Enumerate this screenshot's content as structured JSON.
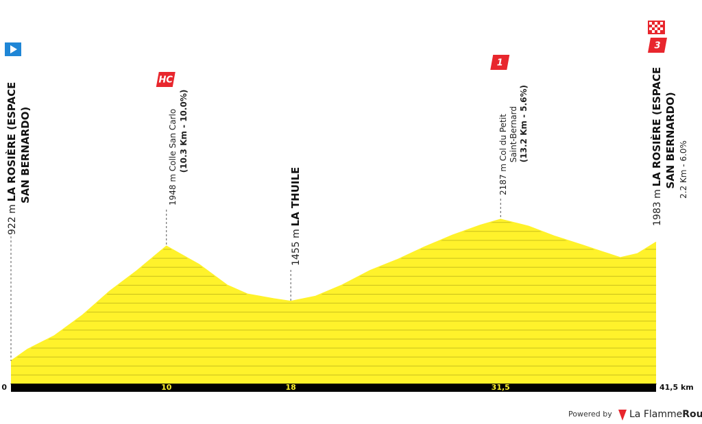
{
  "chart_data": {
    "type": "area",
    "color": "#fff22b",
    "x": [
      0,
      1.06,
      2.8,
      4.6,
      6.35,
      8.1,
      10,
      12.1,
      13.9,
      15.2,
      16.9,
      18,
      19.6,
      21.3,
      23.1,
      24.9,
      26.6,
      28.4,
      30.2,
      31.5,
      33.3,
      35.0,
      36.8,
      38.1,
      39.2,
      40.3,
      41.5
    ],
    "values": [
      922,
      1026,
      1148,
      1331,
      1545,
      1728,
      1948,
      1784,
      1600,
      1520,
      1478,
      1455,
      1500,
      1600,
      1730,
      1830,
      1940,
      2045,
      2135,
      2187,
      2125,
      2035,
      1955,
      1895,
      1845,
      1880,
      1983
    ],
    "xlim": [
      0,
      41.5
    ],
    "ylim": [
      720,
      2500
    ],
    "xticks": [
      0,
      10,
      18,
      {
        "value": 31.5,
        "label": "31,5"
      },
      {
        "value": 41.5,
        "label": "41,5 km"
      }
    ],
    "waypoints": [
      {
        "km": 0,
        "elevation": 922,
        "elevation_label": "922 m",
        "name_lines": [
          "LA ROSIÈRE (ESPACE",
          "SAN BERNARDO)"
        ]
      },
      {
        "km": 10,
        "elevation": 1948,
        "elevation_label": "1948 m",
        "name_lines": [
          "Colle San Carlo"
        ],
        "detail": "(10.3 Km - 10.0%)",
        "category": "HC"
      },
      {
        "km": 18,
        "elevation": 1455,
        "elevation_label": "1455 m",
        "name_lines": [
          "LA THUILE"
        ]
      },
      {
        "km": 31.5,
        "elevation": 2187,
        "elevation_label": "2187 m",
        "name_lines": [
          "Col du Petit",
          "Saint-Bernard"
        ],
        "detail": "(13.2 Km - 5.6%)",
        "category": "1"
      },
      {
        "km": 41.5,
        "elevation": 1983,
        "elevation_label": "1983 m",
        "name_lines": [
          "LA ROSIÈRE (ESPACE",
          "SAN BERNARDO)"
        ],
        "detail": "2.2 Km - 6.0%",
        "category": "3"
      }
    ]
  },
  "footer": {
    "powered": "Powered by",
    "brand": "La Flamme",
    "brand_bold": "Rouge"
  }
}
